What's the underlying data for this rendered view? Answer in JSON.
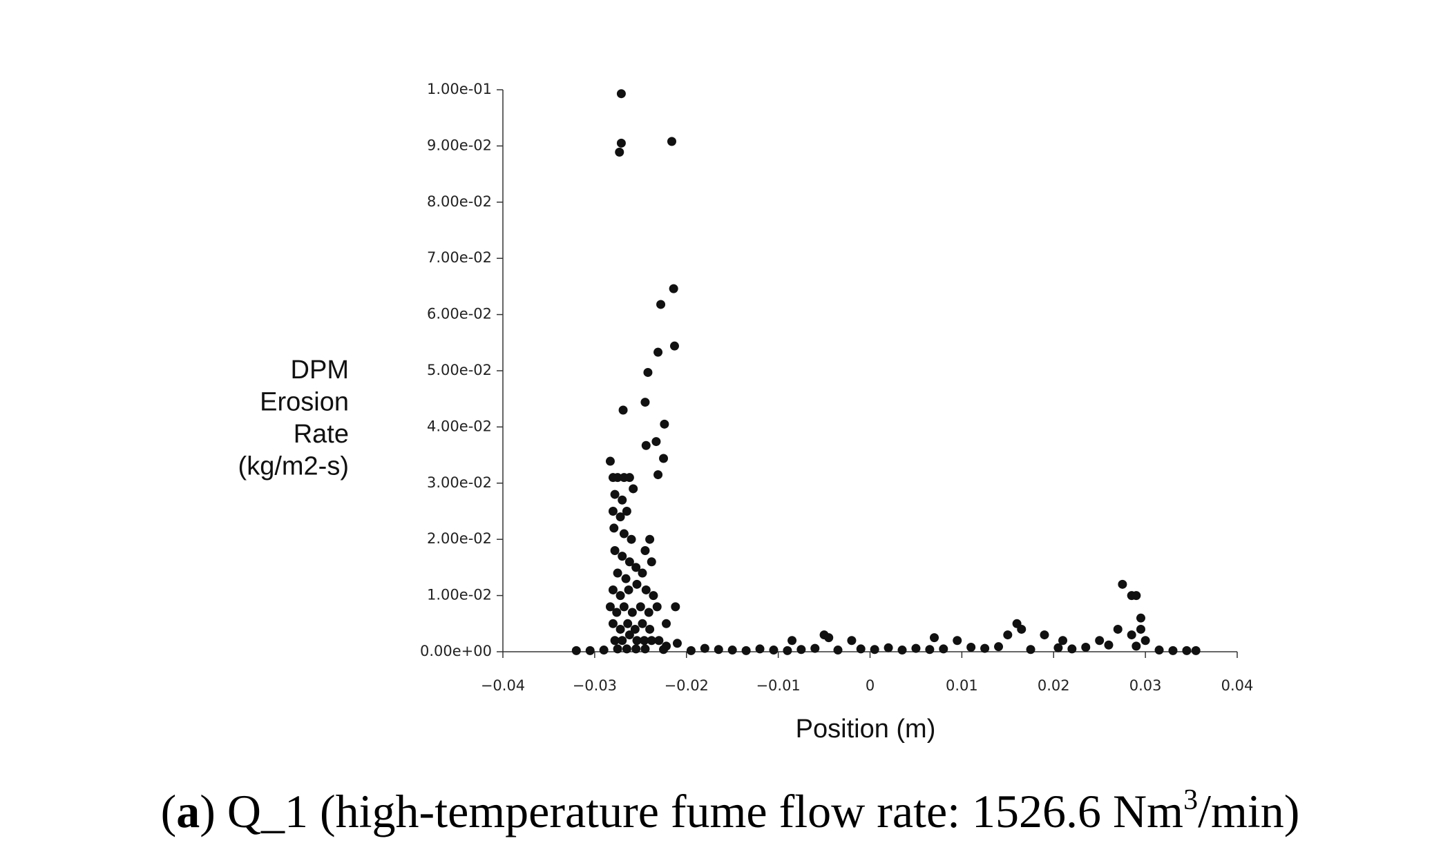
{
  "chart_data": {
    "type": "scatter",
    "ylabel": [
      "DPM",
      "Erosion",
      "Rate",
      "(kg/m2-s)"
    ],
    "xlabel": "Position (m)",
    "caption": {
      "open": "(",
      "letter": "a",
      "text": ") Q_1 (high-temperature fume flow rate: 1526.6 Nm",
      "superscript": "3",
      "close": "/min)"
    },
    "color": "#111111",
    "xlim": [
      -0.04,
      0.04
    ],
    "ylim": [
      0,
      0.1
    ],
    "xticks": [
      {
        "value": -0.04,
        "label": "−0.04"
      },
      {
        "value": -0.03,
        "label": "−0.03"
      },
      {
        "value": -0.02,
        "label": "−0.02"
      },
      {
        "value": -0.01,
        "label": "−0.01"
      },
      0,
      0.01,
      0.02,
      0.03,
      0.04
    ],
    "yticks": [
      {
        "value": 0,
        "label": "0.00e+00"
      },
      {
        "value": 0.01,
        "label": "1.00e-02"
      },
      {
        "value": 0.02,
        "label": "2.00e-02"
      },
      {
        "value": 0.03,
        "label": "3.00e-02"
      },
      {
        "value": 0.04,
        "label": "4.00e-02"
      },
      {
        "value": 0.05,
        "label": "5.00e-02"
      },
      {
        "value": 0.06,
        "label": "6.00e-02"
      },
      {
        "value": 0.07,
        "label": "7.00e-02"
      },
      {
        "value": 0.08,
        "label": "8.00e-02"
      },
      {
        "value": 0.09,
        "label": "9.00e-02"
      },
      {
        "value": 0.1,
        "label": "1.00e-01"
      }
    ],
    "x": [
      -0.0271,
      -0.0271,
      -0.0273,
      -0.0216,
      -0.0214,
      -0.0228,
      -0.0213,
      -0.0231,
      -0.0242,
      -0.0269,
      -0.0245,
      -0.0224,
      -0.0244,
      -0.0233,
      -0.0225,
      -0.0231,
      -0.0283,
      -0.028,
      -0.0275,
      -0.0268,
      -0.0262,
      -0.0278,
      -0.027,
      -0.0258,
      -0.028,
      -0.0272,
      -0.0265,
      -0.0279,
      -0.0268,
      -0.026,
      -0.024,
      -0.0245,
      -0.0278,
      -0.027,
      -0.0262,
      -0.0275,
      -0.0266,
      -0.0255,
      -0.0248,
      -0.0238,
      -0.028,
      -0.0272,
      -0.0263,
      -0.0254,
      -0.0244,
      -0.0236,
      -0.0283,
      -0.0276,
      -0.0268,
      -0.0259,
      -0.025,
      -0.0241,
      -0.0232,
      -0.0212,
      -0.0222,
      -0.028,
      -0.0272,
      -0.0264,
      -0.0256,
      -0.0248,
      -0.024,
      -0.0278,
      -0.027,
      -0.0262,
      -0.0254,
      -0.0246,
      -0.0238,
      -0.023,
      -0.0222,
      -0.0275,
      -0.0265,
      -0.0255,
      -0.0245,
      -0.0085,
      -0.005,
      -0.0045,
      -0.002,
      0.007,
      0.0095,
      0.016,
      0.0165,
      0.015,
      0.019,
      0.021,
      0.025,
      0.027,
      0.0275,
      0.0285,
      0.029,
      0.0295,
      0.0295,
      0.0285,
      0.03,
      0.029,
      -0.032,
      -0.0305,
      -0.029,
      -0.0225,
      -0.021,
      -0.0195,
      -0.018,
      -0.0165,
      -0.015,
      -0.0135,
      -0.012,
      -0.0105,
      -0.009,
      -0.0075,
      -0.006,
      -0.0035,
      -0.001,
      0.0005,
      0.002,
      0.0035,
      0.005,
      0.0065,
      0.008,
      0.011,
      0.0125,
      0.014,
      0.0175,
      0.0205,
      0.022,
      0.0235,
      0.026,
      0.0315,
      0.033,
      0.0345,
      0.0355
    ],
    "values": [
      0.0993,
      0.0905,
      0.0889,
      0.0908,
      0.0646,
      0.0618,
      0.0544,
      0.0533,
      0.0497,
      0.043,
      0.0444,
      0.0405,
      0.0367,
      0.0374,
      0.0344,
      0.0315,
      0.0339,
      0.031,
      0.031,
      0.031,
      0.031,
      0.028,
      0.027,
      0.029,
      0.025,
      0.024,
      0.025,
      0.022,
      0.021,
      0.02,
      0.02,
      0.018,
      0.018,
      0.017,
      0.016,
      0.014,
      0.013,
      0.015,
      0.014,
      0.016,
      0.011,
      0.01,
      0.011,
      0.012,
      0.011,
      0.01,
      0.008,
      0.007,
      0.008,
      0.007,
      0.008,
      0.007,
      0.008,
      0.008,
      0.005,
      0.005,
      0.004,
      0.005,
      0.004,
      0.005,
      0.004,
      0.002,
      0.002,
      0.003,
      0.002,
      0.002,
      0.002,
      0.002,
      0.001,
      0.0005,
      0.0005,
      0.0005,
      0.0005,
      0.002,
      0.003,
      0.0025,
      0.002,
      0.0025,
      0.002,
      0.005,
      0.004,
      0.003,
      0.003,
      0.002,
      0.002,
      0.004,
      0.012,
      0.01,
      0.01,
      0.006,
      0.004,
      0.003,
      0.002,
      0.001,
      0.0002,
      0.0002,
      0.0003,
      0.0004,
      0.0015,
      0.0002,
      0.0006,
      0.0004,
      0.0003,
      0.0002,
      0.0005,
      0.0003,
      0.0002,
      0.0004,
      0.0006,
      0.0003,
      0.0005,
      0.0004,
      0.0007,
      0.0003,
      0.0006,
      0.0004,
      0.0005,
      0.0008,
      0.0006,
      0.0009,
      0.0004,
      0.0007,
      0.0005,
      0.0008,
      0.0012,
      0.0003,
      0.0002,
      0.0002,
      0.0002
    ]
  }
}
